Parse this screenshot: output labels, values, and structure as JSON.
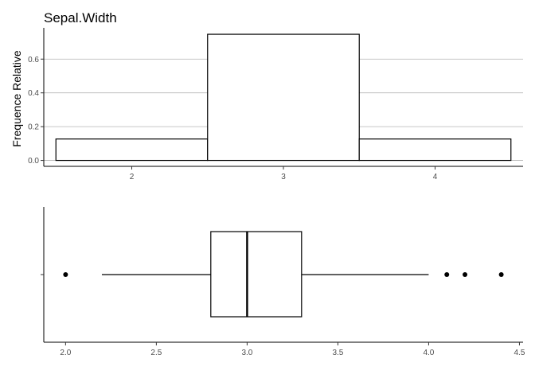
{
  "chart_data": [
    {
      "type": "bar",
      "title": "Sepal.Width",
      "xlabel": "",
      "ylabel": "Frequence Relative",
      "xlim": [
        1.42,
        4.58
      ],
      "ylim": [
        -0.035,
        0.785
      ],
      "grid": "horizontal-major",
      "y_ticks": [
        0.0,
        0.2,
        0.4,
        0.6
      ],
      "y_tick_labels": [
        "0.0",
        "0.2",
        "0.4",
        "0.6"
      ],
      "x_ticks": [
        2,
        3,
        4
      ],
      "x_tick_labels": [
        "2",
        "3",
        "4"
      ],
      "bins": [
        {
          "x0": 1.5,
          "x1": 2.5,
          "value": 0.127
        },
        {
          "x0": 2.5,
          "x1": 3.5,
          "value": 0.747
        },
        {
          "x0": 3.5,
          "x1": 4.5,
          "value": 0.127
        }
      ]
    },
    {
      "type": "boxplot",
      "xlabel": "",
      "ylabel": "",
      "xlim": [
        1.88,
        4.52
      ],
      "x_ticks": [
        2.0,
        2.5,
        3.0,
        3.5,
        4.0,
        4.5
      ],
      "x_tick_labels": [
        "2.0",
        "2.5",
        "3.0",
        "3.5",
        "4.0",
        "4.5"
      ],
      "whisker_low": 2.2,
      "q1": 2.8,
      "median": 3.0,
      "q3": 3.3,
      "whisker_high": 4.0,
      "outliers": [
        2.0,
        4.1,
        4.2,
        4.4
      ]
    }
  ]
}
